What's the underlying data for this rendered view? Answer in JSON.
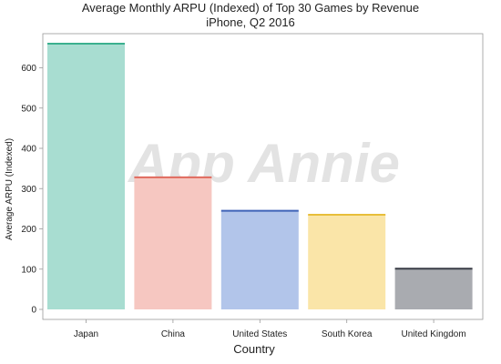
{
  "chart_data": {
    "type": "bar",
    "title": "Average Monthly ARPU (Indexed) of Top 30 Games by Revenue",
    "subtitle": "iPhone, Q2 2016",
    "xlabel": "Country",
    "ylabel": "Average ARPU (Indexed)",
    "categories": [
      "Japan",
      "China",
      "United States",
      "South Korea",
      "United Kingdom"
    ],
    "values": [
      660,
      328,
      245,
      235,
      101
    ],
    "colors": [
      "#a8ddd1",
      "#f6c7c1",
      "#b2c5ea",
      "#fae5a8",
      "#a9abb0"
    ],
    "edge_colors": [
      "#3bb08f",
      "#e06a5e",
      "#3f63b8",
      "#e8be3a",
      "#383c45"
    ],
    "ylim": [
      0,
      690
    ],
    "yticks": [
      0,
      100,
      200,
      300,
      400,
      500,
      600
    ],
    "grid": false,
    "legend": "none"
  },
  "watermark": "App Annie"
}
